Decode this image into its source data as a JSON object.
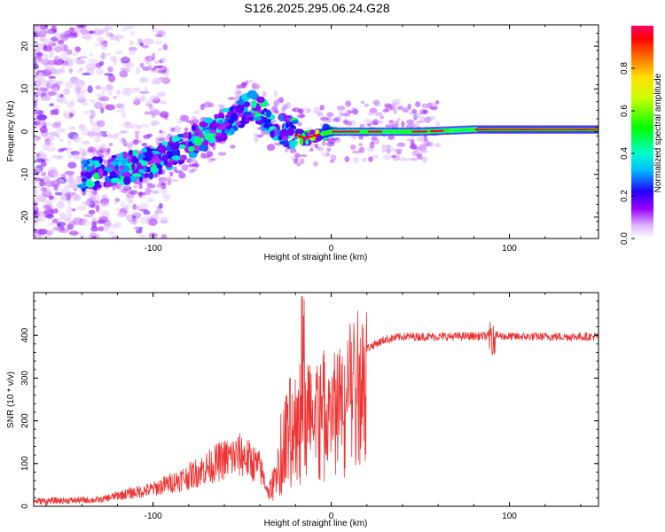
{
  "title": "S126.2025.295.06.24.G28",
  "chart_data": [
    {
      "type": "heatmap",
      "name": "spectrogram",
      "xlabel": "Height of straight line (km)",
      "ylabel": "Frequency (Hz)",
      "xlim": [
        -167,
        150
      ],
      "ylim": [
        -25,
        25
      ],
      "xticks": [
        -100,
        0,
        100
      ],
      "yticks": [
        -20,
        -10,
        0,
        10,
        20
      ],
      "colorbar": {
        "label": "Normalized spectral amplitude",
        "range": [
          0,
          1
        ],
        "ticks": [
          "0.0",
          "0.2",
          "0.4",
          "0.6",
          "0.8"
        ],
        "tick_values": [
          0.0,
          0.2,
          0.4,
          0.6,
          0.8
        ],
        "colors": [
          "#ffffff",
          "#cc99ff",
          "#8000ff",
          "#0000ff",
          "#00ffff",
          "#00ff00",
          "#ffff00",
          "#ff8000",
          "#ff0000",
          "#ff0080"
        ]
      },
      "signal_trace": {
        "description_points_height_km": [
          -135,
          -120,
          -100,
          -80,
          -60,
          -45,
          -35,
          -25,
          -15,
          -5,
          0,
          20,
          50,
          80,
          150
        ],
        "frequency_hz": [
          -10,
          -9,
          -7,
          -3,
          2,
          6,
          3,
          0,
          -1.5,
          -0.5,
          0,
          0,
          0,
          0.5,
          0.5
        ]
      }
    },
    {
      "type": "line",
      "name": "snr",
      "xlabel": "Height of straight line (km)",
      "ylabel": "SNR (10 * v/v)",
      "xlim": [
        -167,
        150
      ],
      "ylim": [
        0,
        500
      ],
      "xticks": [
        -100,
        0,
        100
      ],
      "yticks": [
        0,
        100,
        200,
        300,
        400
      ],
      "line_color": "#ee3333",
      "envelope_x": [
        -167,
        -130,
        -120,
        -100,
        -80,
        -60,
        -50,
        -40,
        -35,
        -30,
        -25,
        -20,
        -15,
        -10,
        -5,
        0,
        5,
        10,
        15,
        20,
        25,
        30,
        40,
        60,
        80,
        88,
        90,
        100,
        150
      ],
      "envelope_y": [
        12,
        15,
        25,
        40,
        70,
        110,
        120,
        90,
        30,
        100,
        180,
        220,
        250,
        250,
        260,
        240,
        270,
        320,
        350,
        370,
        380,
        390,
        397,
        397,
        398,
        398,
        400,
        397,
        397
      ]
    }
  ]
}
